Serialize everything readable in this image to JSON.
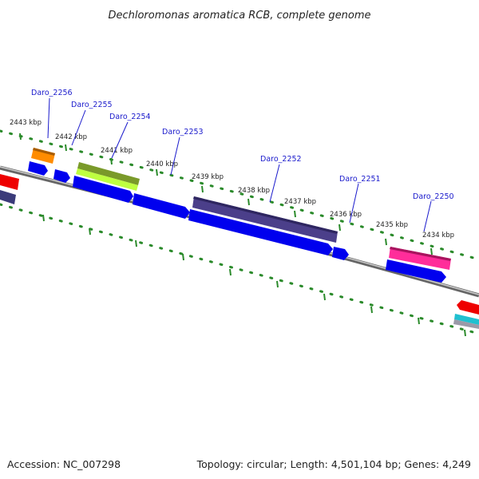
{
  "header": {
    "title": "Dechloromonas aromatica RCB, complete genome"
  },
  "footer": {
    "accession": "Accession: NC_007298",
    "summary": "Topology: circular; Length: 4,501,104 bp; Genes: 4,249"
  },
  "ruler": {
    "labels": [
      "2443 kbp",
      "2442 kbp",
      "2441 kbp",
      "2440 kbp",
      "2439 kbp",
      "2438 kbp",
      "2437 kbp",
      "2436 kbp",
      "2435 kbp",
      "2434 kbp"
    ]
  },
  "genes": {
    "labels": [
      "Daro_2256",
      "Daro_2255",
      "Daro_2254",
      "Daro_2253",
      "Daro_2252",
      "Daro_2251",
      "Daro_2250"
    ]
  },
  "colors": {
    "backbone": "#888888",
    "tick": "#2a8a2a",
    "cds": "#0000ee",
    "label": "#1a1acc",
    "feature_orange": "#ff8c00",
    "feature_green": "#7a9a2a",
    "feature_lime": "#bfff40",
    "feature_slate": "#4b3f8a",
    "feature_pink": "#ff2d9a",
    "feature_red": "#ee0000",
    "feature_cyan": "#20c0d0"
  }
}
